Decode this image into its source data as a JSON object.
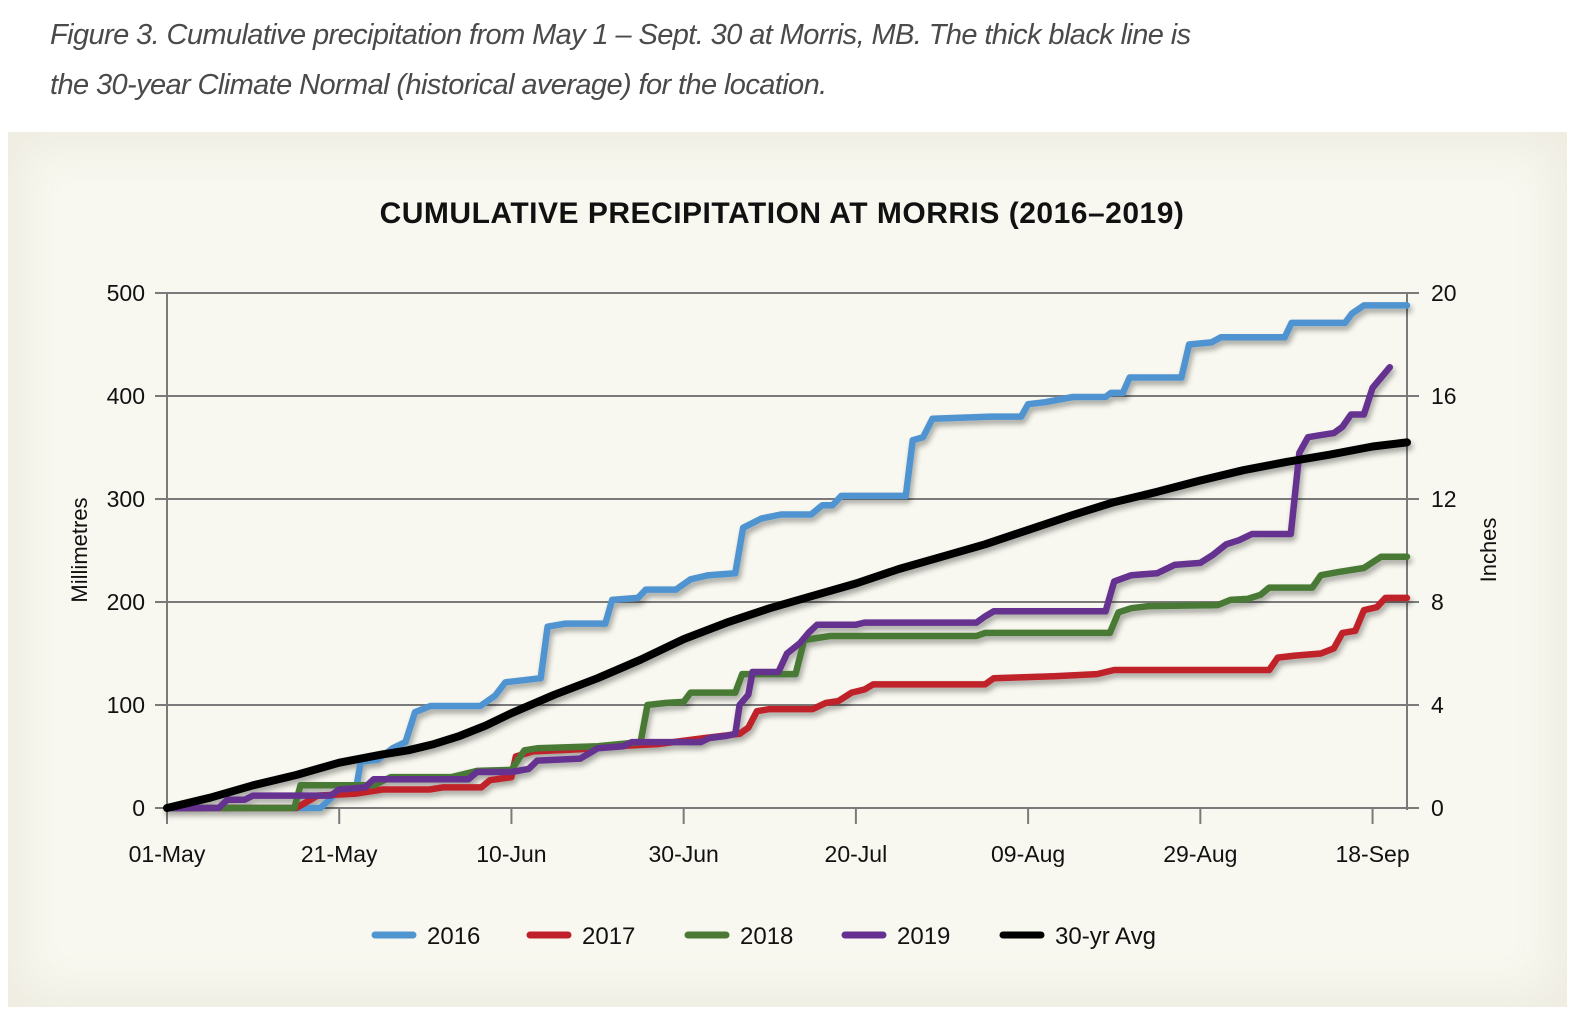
{
  "caption": "Figure 3. Cumulative precipitation from May 1 – Sept. 30 at Morris, MB. The thick black line is the 30-year Climate Normal (historical average) for the location.",
  "caption_lines": [
    "Figure 3. Cumulative precipitation from May 1 – Sept. 30 at Morris, MB. The thick black line is",
    "the 30-year Climate Normal (historical average) for the location."
  ],
  "chart_data": {
    "type": "line",
    "title": "CUMULATIVE PRECIPITATION AT MORRIS (2016–2019)",
    "xlabel": "",
    "ylabel": "Millimetres",
    "y2label": "Inches",
    "x_unit": "days since 01-May",
    "xlim": [
      0,
      144
    ],
    "ylim": [
      0,
      500
    ],
    "y2lim": [
      0,
      20
    ],
    "grid": true,
    "legend_position": "bottom",
    "x_ticks": [
      {
        "day": 0,
        "label": "01-May"
      },
      {
        "day": 20,
        "label": "21-May"
      },
      {
        "day": 40,
        "label": "10-Jun"
      },
      {
        "day": 60,
        "label": "30-Jun"
      },
      {
        "day": 80,
        "label": "20-Jul"
      },
      {
        "day": 100,
        "label": "09-Aug"
      },
      {
        "day": 120,
        "label": "29-Aug"
      },
      {
        "day": 140,
        "label": "18-Sep"
      }
    ],
    "y_ticks": [
      0,
      100,
      200,
      300,
      400,
      500
    ],
    "y2_ticks": [
      0,
      4,
      8,
      12,
      16,
      20
    ],
    "series": [
      {
        "name": "2016",
        "color": "#5094d0",
        "thick": false,
        "points": [
          [
            0,
            0
          ],
          [
            17.8,
            0
          ],
          [
            19.5,
            13
          ],
          [
            21.9,
            16
          ],
          [
            22.5,
            45
          ],
          [
            24.5,
            47
          ],
          [
            26.2,
            58
          ],
          [
            27.7,
            64
          ],
          [
            28.8,
            93
          ],
          [
            30.6,
            99
          ],
          [
            36.4,
            99
          ],
          [
            38.1,
            109
          ],
          [
            39.3,
            122
          ],
          [
            43.4,
            126
          ],
          [
            44.2,
            176
          ],
          [
            46.3,
            179
          ],
          [
            50.9,
            179
          ],
          [
            51.7,
            202
          ],
          [
            54.7,
            204
          ],
          [
            55.6,
            212
          ],
          [
            59.1,
            212
          ],
          [
            60.8,
            222
          ],
          [
            62.9,
            226
          ],
          [
            66,
            228
          ],
          [
            66.9,
            272
          ],
          [
            69,
            281
          ],
          [
            71.3,
            285
          ],
          [
            74.8,
            285
          ],
          [
            76.1,
            294
          ],
          [
            77.3,
            294
          ],
          [
            78.3,
            303
          ],
          [
            85.8,
            303
          ],
          [
            86.6,
            357
          ],
          [
            87.8,
            360
          ],
          [
            88.9,
            378
          ],
          [
            95.7,
            380
          ],
          [
            99.2,
            380
          ],
          [
            100,
            392
          ],
          [
            102,
            394
          ],
          [
            105.2,
            399
          ],
          [
            109,
            399
          ],
          [
            109.6,
            403
          ],
          [
            111,
            403
          ],
          [
            111.8,
            418
          ],
          [
            117.8,
            418
          ],
          [
            118.7,
            450
          ],
          [
            121.3,
            452
          ],
          [
            122.4,
            457
          ],
          [
            129.8,
            457
          ],
          [
            130.6,
            471
          ],
          [
            136.8,
            471
          ],
          [
            137.6,
            480
          ],
          [
            139,
            488
          ],
          [
            144,
            488
          ]
        ]
      },
      {
        "name": "2017",
        "color": "#c0202a",
        "thick": false,
        "points": [
          [
            0,
            0
          ],
          [
            15,
            0
          ],
          [
            17.5,
            12
          ],
          [
            22,
            14
          ],
          [
            25,
            18
          ],
          [
            30.5,
            18
          ],
          [
            32,
            20
          ],
          [
            36.5,
            20
          ],
          [
            37.5,
            27
          ],
          [
            40,
            30
          ],
          [
            40.5,
            50
          ],
          [
            42.5,
            55
          ],
          [
            48,
            57
          ],
          [
            52,
            60
          ],
          [
            57,
            62
          ],
          [
            62.5,
            68
          ],
          [
            66.5,
            72
          ],
          [
            67.5,
            78
          ],
          [
            68.5,
            94
          ],
          [
            70,
            96
          ],
          [
            75,
            96
          ],
          [
            76.5,
            102
          ],
          [
            78,
            104
          ],
          [
            79.5,
            112
          ],
          [
            81,
            115
          ],
          [
            82,
            120
          ],
          [
            95,
            120
          ],
          [
            96,
            126
          ],
          [
            103,
            128
          ],
          [
            108,
            130
          ],
          [
            110,
            134
          ],
          [
            128,
            134
          ],
          [
            129,
            146
          ],
          [
            131,
            148
          ],
          [
            134,
            150
          ],
          [
            135.5,
            155
          ],
          [
            136.5,
            170
          ],
          [
            138,
            172
          ],
          [
            139,
            192
          ],
          [
            140.5,
            195
          ],
          [
            141.5,
            204
          ],
          [
            144,
            204
          ]
        ]
      },
      {
        "name": "2018",
        "color": "#4a7a35",
        "thick": false,
        "points": [
          [
            0,
            0
          ],
          [
            14.8,
            0
          ],
          [
            15.5,
            22
          ],
          [
            24,
            22
          ],
          [
            26,
            30
          ],
          [
            33,
            30
          ],
          [
            36,
            36
          ],
          [
            40,
            37
          ],
          [
            41.5,
            56
          ],
          [
            43,
            58
          ],
          [
            50,
            60
          ],
          [
            55,
            64
          ],
          [
            55.8,
            100
          ],
          [
            58,
            102
          ],
          [
            60,
            103
          ],
          [
            60.8,
            112
          ],
          [
            66,
            112
          ],
          [
            66.8,
            130
          ],
          [
            73,
            130
          ],
          [
            74,
            163
          ],
          [
            75.5,
            165
          ],
          [
            77,
            167
          ],
          [
            94,
            167
          ],
          [
            95,
            170
          ],
          [
            109.5,
            170
          ],
          [
            110.5,
            190
          ],
          [
            112,
            194
          ],
          [
            114,
            196
          ],
          [
            122,
            197
          ],
          [
            123.5,
            202
          ],
          [
            125.5,
            203
          ],
          [
            127,
            207
          ],
          [
            128,
            214
          ],
          [
            133,
            214
          ],
          [
            134,
            226
          ],
          [
            136,
            229
          ],
          [
            139,
            233
          ],
          [
            141,
            244
          ],
          [
            144,
            244
          ]
        ]
      },
      {
        "name": "2019",
        "color": "#653190",
        "thick": false,
        "points": [
          [
            0,
            0
          ],
          [
            6,
            0
          ],
          [
            7,
            8
          ],
          [
            9,
            8
          ],
          [
            10,
            12
          ],
          [
            19,
            12
          ],
          [
            20,
            18
          ],
          [
            23,
            20
          ],
          [
            24,
            28
          ],
          [
            35,
            28
          ],
          [
            36,
            35
          ],
          [
            40,
            35
          ],
          [
            42,
            38
          ],
          [
            43,
            46
          ],
          [
            48,
            48
          ],
          [
            50,
            58
          ],
          [
            53,
            60
          ],
          [
            54,
            64
          ],
          [
            62,
            64
          ],
          [
            63,
            68
          ],
          [
            65,
            70
          ],
          [
            66,
            72
          ],
          [
            66.5,
            100
          ],
          [
            67.5,
            110
          ],
          [
            68,
            132
          ],
          [
            71,
            132
          ],
          [
            72,
            150
          ],
          [
            73.5,
            160
          ],
          [
            74.5,
            170
          ],
          [
            75.5,
            178
          ],
          [
            80,
            178
          ],
          [
            81,
            180
          ],
          [
            94,
            180
          ],
          [
            95,
            186
          ],
          [
            96,
            191
          ],
          [
            109,
            191
          ],
          [
            110,
            220
          ],
          [
            112,
            226
          ],
          [
            115,
            228
          ],
          [
            117,
            236
          ],
          [
            120,
            238
          ],
          [
            121.5,
            246
          ],
          [
            123,
            256
          ],
          [
            124.5,
            260
          ],
          [
            126,
            266
          ],
          [
            130.5,
            266
          ],
          [
            131.5,
            345
          ],
          [
            132.5,
            360
          ],
          [
            134,
            362
          ],
          [
            135.5,
            364
          ],
          [
            136.5,
            370
          ],
          [
            137.5,
            382
          ],
          [
            139,
            382
          ],
          [
            140,
            408
          ],
          [
            141,
            418
          ],
          [
            142,
            428
          ]
        ]
      },
      {
        "name": "30-yr Avg",
        "color": "#000000",
        "thick": true,
        "points": [
          [
            0,
            0
          ],
          [
            5,
            10
          ],
          [
            10,
            22
          ],
          [
            15,
            32
          ],
          [
            20,
            44
          ],
          [
            25,
            52
          ],
          [
            28,
            56
          ],
          [
            31,
            62
          ],
          [
            34,
            70
          ],
          [
            37,
            80
          ],
          [
            40,
            92
          ],
          [
            45,
            110
          ],
          [
            50,
            126
          ],
          [
            55,
            144
          ],
          [
            60,
            164
          ],
          [
            65,
            180
          ],
          [
            70,
            194
          ],
          [
            75,
            206
          ],
          [
            80,
            218
          ],
          [
            85,
            232
          ],
          [
            90,
            244
          ],
          [
            95,
            256
          ],
          [
            100,
            270
          ],
          [
            105,
            284
          ],
          [
            110,
            297
          ],
          [
            115,
            307
          ],
          [
            120,
            318
          ],
          [
            125,
            328
          ],
          [
            130,
            336
          ],
          [
            135,
            343
          ],
          [
            140,
            351
          ],
          [
            144,
            355
          ]
        ]
      }
    ]
  }
}
